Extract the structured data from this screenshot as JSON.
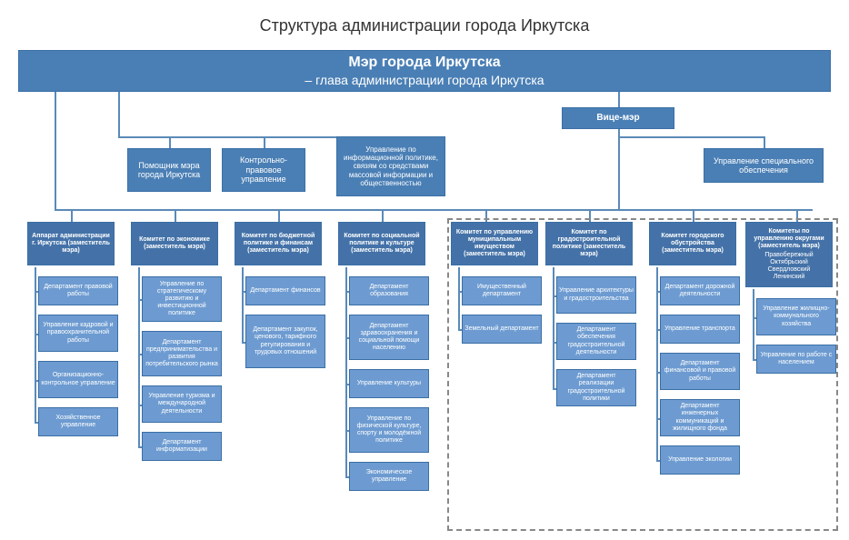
{
  "title": "Структура администрации города Иркутска",
  "colors": {
    "box_bg": "#4a7fb5",
    "box_light": "#6d9bd1",
    "box_border": "#3a6fa5",
    "line": "#5a8ab8",
    "title_color": "#333333",
    "bg": "#ffffff",
    "dashed_border": "#888888"
  },
  "mayor": {
    "line1": "Мэр города Иркутска",
    "line2": "– глава администрации города Иркутска"
  },
  "vice_mayor": "Вице-мэр",
  "row2": {
    "b1": "Помощник мэра города Иркутска",
    "b2": "Контрольно-правовое управление",
    "b3": "Управление по информационной политике, связям со средствами массовой информации и общественностью",
    "b4": "Управление специального обеспечения"
  },
  "committees": {
    "c1": "Аппарат администрации г. Иркутска (заместитель мэра)",
    "c2": "Комитет по экономике (заместитель мэра)",
    "c3": "Комитет по бюджетной политике и финансам (заместитель мэра)",
    "c4": "Комитет по социальной политике и культуре (заместитель мэра)",
    "c5": "Комитет по управлению муниципальным имуществом (заместитель мэра)",
    "c6": "Комитет по градостроительной политике (заместитель мэра)",
    "c7": "Комитет городского обустройства (заместитель мэра)",
    "c8_top": "Комитеты по управлению округами (заместитель мэра)",
    "c8_bottom": "Правобережный\nОктябрьский\nСвердловский\nЛенинский"
  },
  "col1": [
    "Департамент правовой работы",
    "Управление кадровой и правоохранительной работы",
    "Организационно-контрольное управление",
    "Хозяйственное управление"
  ],
  "col2": [
    "Управление по стратегическому развитию и инвестиционной политике",
    "Департамент предпринимательства и развития потребительского рынка",
    "Управление туризма и международной деятельности",
    "Департамент информатизации"
  ],
  "col3": [
    "Департамент финансов",
    "Департамент закупок, ценового, тарифного регулирования и трудовых отношений"
  ],
  "col4": [
    "Департамент образования",
    "Департамент здравоохранения и социальной помощи населению",
    "Управление культуры",
    "Управление по физической культуре, спорту и молодёжной политике",
    "Экономическое управление"
  ],
  "col5": [
    "Имущественный департамент",
    "Земельный департамент"
  ],
  "col6": [
    "Управление архитектуры и градостроительства",
    "Департамент обеспечения градостроительной деятельности",
    "Департамент реализации градостроительной политики"
  ],
  "col7": [
    "Департамент дорожной деятельности",
    "Управление транспорта",
    "Департамент финансовой и правовой работы",
    "Департамент инженерных коммуникаций и жилищного фонда",
    "Управление экологии"
  ],
  "col8": [
    "Управление жилищно-коммунального хозяйства",
    "Управление по работе с населением"
  ]
}
